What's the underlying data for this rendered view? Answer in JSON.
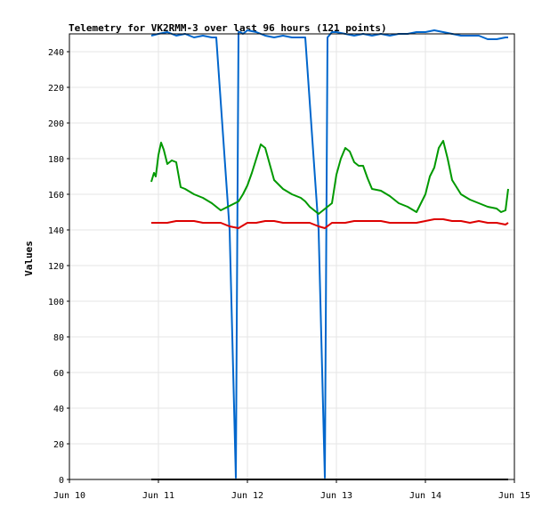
{
  "chart_data": {
    "type": "line",
    "title": "Telemetry for VK2RMM-3 over last 96 hours (121 points)",
    "xlabel": "",
    "ylabel": "Values",
    "xlim": [
      "Jun 10",
      "Jun 15"
    ],
    "ylim": [
      0,
      250
    ],
    "x_ticks": [
      "Jun 10",
      "Jun 11",
      "Jun 12",
      "Jun 13",
      "Jun 14",
      "Jun 15"
    ],
    "y_ticks": [
      0,
      20,
      40,
      60,
      80,
      100,
      120,
      140,
      160,
      180,
      200,
      220,
      240
    ],
    "grid": true,
    "series": [
      {
        "color": "#0066cc",
        "x": [
          10.92,
          11.0,
          11.1,
          11.2,
          11.3,
          11.4,
          11.5,
          11.6,
          11.65,
          11.8,
          11.87,
          11.9,
          11.92,
          11.95,
          12.0,
          12.1,
          12.2,
          12.3,
          12.4,
          12.5,
          12.6,
          12.65,
          12.8,
          12.87,
          12.9,
          12.95,
          13.0,
          13.1,
          13.2,
          13.3,
          13.4,
          13.5,
          13.6,
          13.7,
          13.8,
          13.9,
          14.0,
          14.1,
          14.2,
          14.3,
          14.4,
          14.5,
          14.6,
          14.7,
          14.8,
          14.9,
          14.93
        ],
        "y": [
          249,
          250,
          251,
          249,
          250,
          248,
          249,
          248,
          248,
          140,
          1,
          251,
          251,
          250,
          252,
          251,
          249,
          248,
          249,
          248,
          248,
          248,
          140,
          1,
          248,
          251,
          251,
          250,
          249,
          250,
          249,
          250,
          249,
          250,
          250,
          251,
          251,
          252,
          251,
          250,
          249,
          249,
          249,
          247,
          247,
          248,
          248
        ]
      },
      {
        "color": "#009900",
        "x": [
          10.92,
          10.95,
          10.97,
          11.0,
          11.03,
          11.06,
          11.1,
          11.15,
          11.2,
          11.25,
          11.3,
          11.4,
          11.5,
          11.6,
          11.65,
          11.7,
          11.9,
          11.95,
          12.0,
          12.05,
          12.1,
          12.15,
          12.2,
          12.3,
          12.4,
          12.5,
          12.6,
          12.65,
          12.7,
          12.8,
          12.85,
          12.9,
          12.95,
          13.0,
          13.05,
          13.1,
          13.15,
          13.2,
          13.25,
          13.3,
          13.35,
          13.4,
          13.5,
          13.6,
          13.7,
          13.8,
          13.9,
          14.0,
          14.05,
          14.1,
          14.15,
          14.2,
          14.25,
          14.3,
          14.4,
          14.5,
          14.6,
          14.7,
          14.8,
          14.85,
          14.9,
          14.93
        ],
        "y": [
          167,
          172,
          170,
          182,
          189,
          185,
          177,
          179,
          178,
          164,
          163,
          160,
          158,
          155,
          153,
          151,
          156,
          160,
          165,
          172,
          180,
          188,
          186,
          168,
          163,
          160,
          158,
          156,
          153,
          149,
          151,
          153,
          155,
          171,
          180,
          186,
          184,
          178,
          176,
          176,
          169,
          163,
          162,
          159,
          155,
          153,
          150,
          160,
          170,
          175,
          186,
          190,
          180,
          168,
          160,
          157,
          155,
          153,
          152,
          150,
          151,
          163
        ]
      },
      {
        "color": "#dd0000",
        "x": [
          10.92,
          11.0,
          11.1,
          11.2,
          11.3,
          11.4,
          11.5,
          11.6,
          11.7,
          11.8,
          11.9,
          12.0,
          12.1,
          12.2,
          12.3,
          12.4,
          12.5,
          12.6,
          12.7,
          12.8,
          12.87,
          12.95,
          13.0,
          13.1,
          13.2,
          13.3,
          13.4,
          13.5,
          13.6,
          13.7,
          13.8,
          13.9,
          14.0,
          14.1,
          14.2,
          14.3,
          14.4,
          14.5,
          14.6,
          14.7,
          14.8,
          14.9,
          14.93
        ],
        "y": [
          144,
          144,
          144,
          145,
          145,
          145,
          144,
          144,
          144,
          142,
          141,
          144,
          144,
          145,
          145,
          144,
          144,
          144,
          144,
          142,
          141,
          144,
          144,
          144,
          145,
          145,
          145,
          145,
          144,
          144,
          144,
          144,
          145,
          146,
          146,
          145,
          145,
          144,
          145,
          144,
          144,
          143,
          144
        ]
      },
      {
        "color": "#000000",
        "x": [
          10.92,
          14.93
        ],
        "y": [
          0,
          0
        ]
      }
    ]
  }
}
